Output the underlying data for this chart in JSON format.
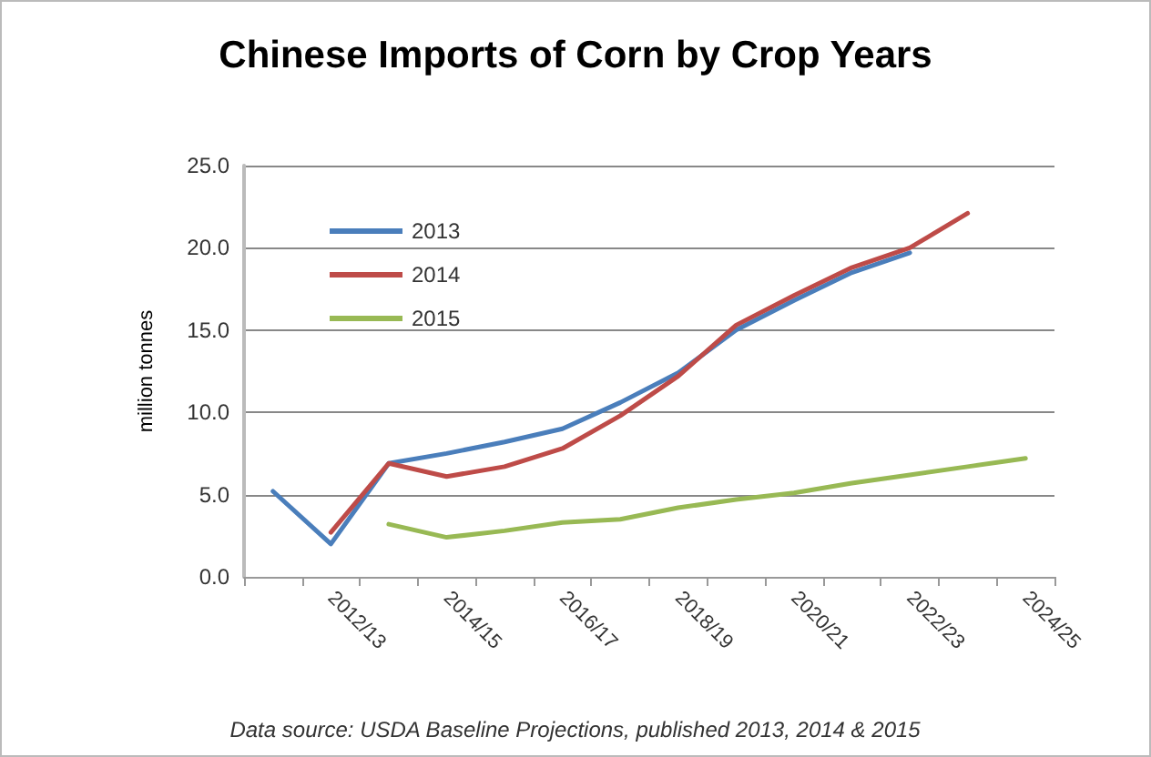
{
  "chart_data": {
    "type": "line",
    "title": "Chinese Imports of Corn by Crop Years",
    "ylabel": "million tonnes",
    "categories": [
      null,
      "2012/13",
      null,
      "2014/15",
      null,
      "2016/17",
      null,
      "2018/19",
      null,
      "2020/21",
      null,
      "2022/23",
      null,
      "2024/25"
    ],
    "series": [
      {
        "name": "2013",
        "color": "#4a7ebb",
        "values": [
          5.2,
          2.0,
          6.9,
          7.5,
          8.2,
          9.0,
          10.6,
          12.4,
          15.0,
          16.8,
          18.5,
          19.7,
          null,
          null
        ]
      },
      {
        "name": "2014",
        "color": "#be4b48",
        "values": [
          null,
          2.7,
          6.9,
          6.1,
          6.7,
          7.8,
          9.8,
          12.2,
          15.3,
          17.1,
          18.8,
          20.0,
          22.1,
          null
        ]
      },
      {
        "name": "2015",
        "color": "#98b954",
        "values": [
          null,
          null,
          3.2,
          2.4,
          2.8,
          3.3,
          3.5,
          4.2,
          4.7,
          5.1,
          5.7,
          6.2,
          6.7,
          7.2
        ]
      }
    ],
    "ylim": [
      0,
      25
    ],
    "yticks": [
      {
        "value": 0,
        "label": "0.0"
      },
      {
        "value": 5,
        "label": "5.0"
      },
      {
        "value": 10,
        "label": "10.0"
      },
      {
        "value": 15,
        "label": "15.0"
      },
      {
        "value": 20,
        "label": "20.0"
      },
      {
        "value": 25,
        "label": "25.0"
      }
    ],
    "grid": "y",
    "legend": "top left",
    "marker": "none",
    "line_style": "solid",
    "annotations": [
      "Data source: USDA Baseline Projections, published 2013, 2014 & 2015"
    ]
  }
}
